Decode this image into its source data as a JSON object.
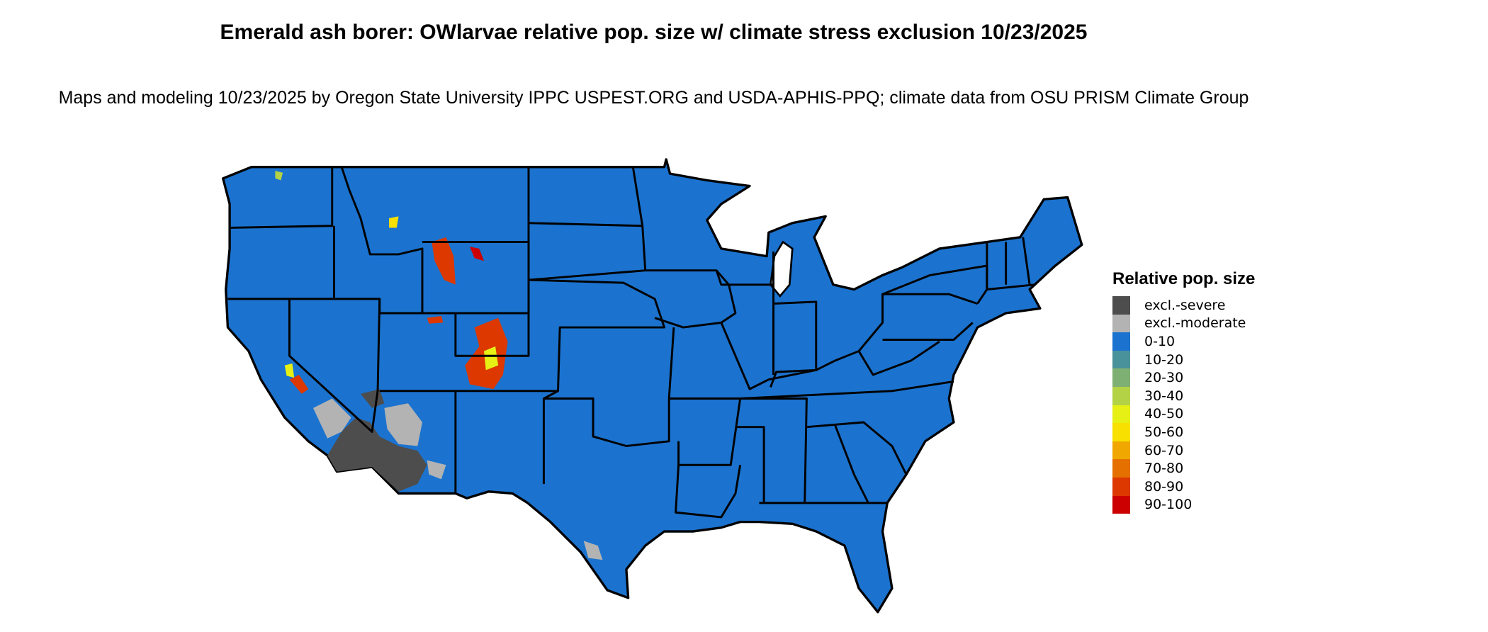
{
  "title": "Emerald ash borer: OWlarvae relative pop. size w/ climate stress exclusion 10/23/2025",
  "subtitle": "Maps and modeling 10/23/2025 by Oregon State University IPPC USPEST.ORG and USDA-APHIS-PPQ; climate data from OSU PRISM Climate Group",
  "legend": {
    "title": "Relative pop. size",
    "items": [
      {
        "label": "excl.-severe",
        "color": "#4d4d4d"
      },
      {
        "label": "excl.-moderate",
        "color": "#b3b3b3"
      },
      {
        "label": "0-10",
        "color": "#1b73cf"
      },
      {
        "label": "10-20",
        "color": "#4a929b"
      },
      {
        "label": "20-30",
        "color": "#7fb073"
      },
      {
        "label": "30-40",
        "color": "#b3d246"
      },
      {
        "label": "40-50",
        "color": "#e6f014"
      },
      {
        "label": "50-60",
        "color": "#f8e000"
      },
      {
        "label": "60-70",
        "color": "#f0a800"
      },
      {
        "label": "70-80",
        "color": "#e57000"
      },
      {
        "label": "80-90",
        "color": "#dc3800"
      },
      {
        "label": "90-100",
        "color": "#cc0000"
      }
    ]
  },
  "map": {
    "region": "Contiguous United States",
    "dominant_class": "0-10",
    "border_color": "#000000"
  }
}
